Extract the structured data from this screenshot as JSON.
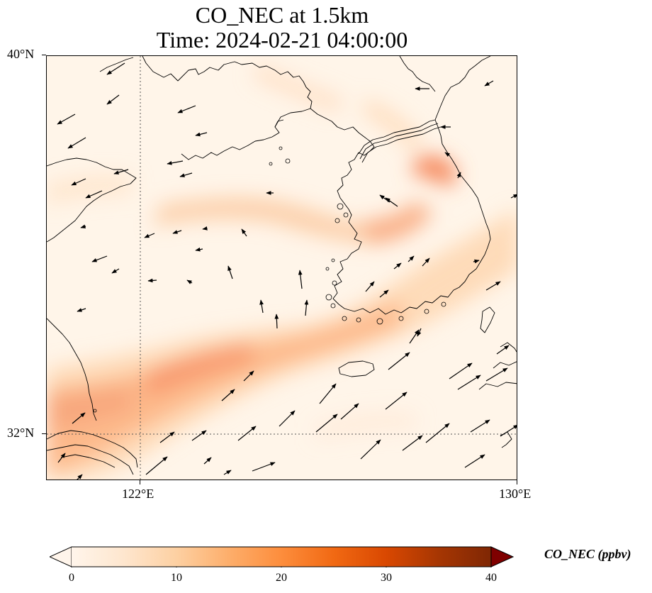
{
  "title": {
    "line1": "CO_NEC at 1.5km",
    "line2": "Time: 2024-02-21 04:00:00"
  },
  "map": {
    "lon_range": [
      121,
      130
    ],
    "lat_range": [
      31.2,
      40
    ],
    "lat_ticks": [
      {
        "value": 40,
        "label": "40°N"
      },
      {
        "value": 32,
        "label": "32°N"
      }
    ],
    "lon_ticks": [
      {
        "value": 122,
        "label": "122°E"
      },
      {
        "value": 130,
        "label": "130°E"
      }
    ],
    "gridlines": "dotted"
  },
  "colorbar": {
    "label": "CO_NEC (ppbv)",
    "min": 0,
    "max": 40,
    "extend": "both",
    "ticks": [
      {
        "value": 0,
        "label": "0"
      },
      {
        "value": 10,
        "label": "10"
      },
      {
        "value": 20,
        "label": "20"
      },
      {
        "value": 30,
        "label": "30"
      },
      {
        "value": 40,
        "label": "40"
      }
    ],
    "colormap": [
      "#fff5eb",
      "#fee6ce",
      "#fdd0a2",
      "#fdae6b",
      "#fd8d3c",
      "#f16913",
      "#d94801",
      "#a63603",
      "#7f2704"
    ]
  }
}
